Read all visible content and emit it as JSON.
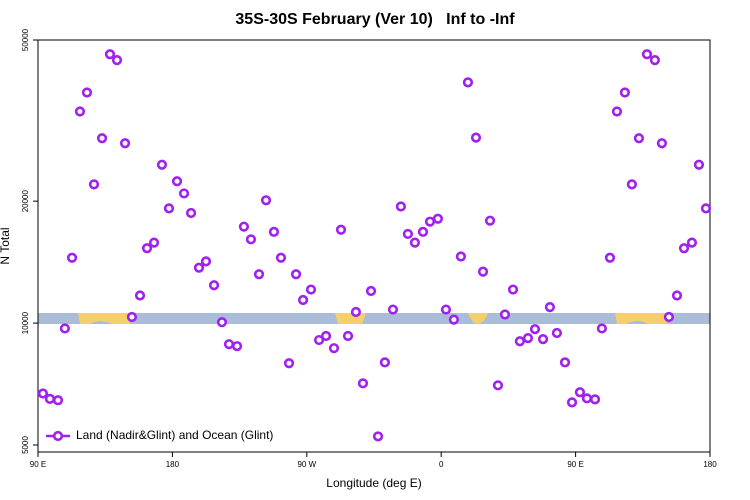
{
  "chart_data": {
    "type": "scatter",
    "title": "35S-30S February (Ver 10)   Inf to -Inf",
    "xlabel": "Longitude (deg E)",
    "ylabel": "N Total",
    "xlim": [
      90,
      540
    ],
    "xticks": [
      {
        "value": 90,
        "label": "90 E"
      },
      {
        "value": 180,
        "label": "180"
      },
      {
        "value": 270,
        "label": "90 W"
      },
      {
        "value": 360,
        "label": "0"
      },
      {
        "value": 450,
        "label": "90 E"
      },
      {
        "value": 540,
        "label": "180"
      }
    ],
    "ylim": [
      5000,
      50000
    ],
    "yticks": [
      5000,
      10000,
      20000,
      50000
    ],
    "log_y": true,
    "legend": "bottom-left",
    "series": [
      {
        "name": "Land (Nadir&Glint) and Ocean (Glint)",
        "color": "#a020f0",
        "x": [
          93.3,
          98,
          103.4,
          108,
          112.8,
          118.1,
          122.8,
          127.5,
          132.9,
          138.2,
          142.9,
          148.3,
          152.9,
          158.3,
          163,
          167.7,
          173,
          177.7,
          183.1,
          187.8,
          192.5,
          197.8,
          202.5,
          207.9,
          213.2,
          217.9,
          223.3,
          227.9,
          232.6,
          238,
          242.7,
          248,
          252.7,
          258.1,
          262.8,
          267.5,
          272.8,
          278.2,
          282.9,
          288.2,
          292.9,
          297.6,
          302.9,
          307.6,
          313,
          317.7,
          322.3,
          327.7,
          333,
          337.7,
          342.4,
          347.8,
          352.5,
          357.8,
          363.2,
          368.5,
          373.2,
          377.9,
          383.3,
          388,
          392.7,
          398,
          402.7,
          408.1,
          412.7,
          418.1,
          422.8,
          428.2,
          432.8,
          437.5,
          442.9,
          447.6,
          452.9,
          457.6,
          463,
          467.6,
          473,
          477.7,
          483,
          487.7,
          492.4,
          497.8,
          503.1,
          507.8,
          512.5,
          517.9,
          522.6,
          527.9,
          532.6,
          537.3
        ],
        "values": [
          6700,
          6500,
          6450,
          9700,
          14500,
          33300,
          37100,
          22000,
          28600,
          46100,
          44600,
          27800,
          10350,
          11700,
          15300,
          15800,
          24600,
          19200,
          22400,
          20900,
          18700,
          13700,
          14200,
          12400,
          10050,
          8870,
          8770,
          17300,
          16100,
          13200,
          20100,
          16800,
          14500,
          7960,
          13200,
          11400,
          12100,
          9080,
          9290,
          8670,
          17000,
          9290,
          10650,
          7100,
          12000,
          5250,
          8000,
          10800,
          19400,
          16600,
          15800,
          16800,
          17800,
          18100,
          10800,
          10200,
          14600,
          39300,
          28700,
          13400,
          17900,
          7020,
          10500,
          12100,
          9020,
          9180,
          9660,
          9130,
          10950,
          9450,
          8000,
          6370,
          6750,
          6520,
          6480,
          9700,
          14500,
          33300,
          37100,
          22000,
          28600,
          46100,
          44600,
          27800,
          10350,
          11700,
          15300,
          15800,
          24600,
          19200
        ]
      }
    ]
  }
}
